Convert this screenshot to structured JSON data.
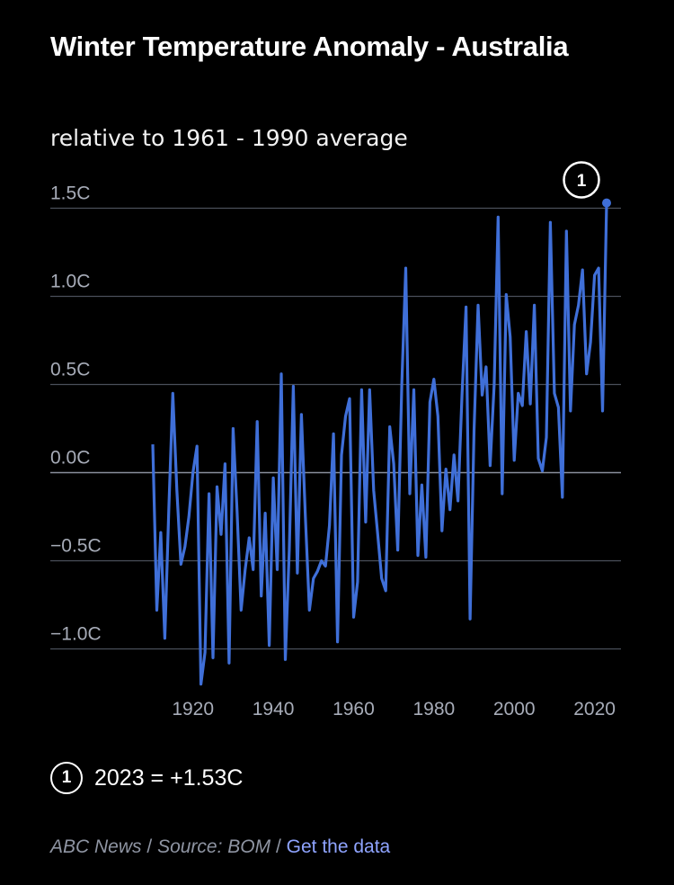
{
  "title": "Winter Temperature Anomaly - Australia",
  "subtitle": "relative to 1961 - 1990 average",
  "colors": {
    "line": "#3f6fd8",
    "grid": "#4a4f5a",
    "zero": "#8a8f9c",
    "tick": "#a7acb8",
    "link": "#8fa4ff"
  },
  "annotation": {
    "marker": "1",
    "text": "2023 = +1.53C"
  },
  "footer": {
    "publisher": "ABC News",
    "source": "Source: BOM",
    "separator": "/",
    "link_label": "Get the data"
  },
  "chart_data": {
    "type": "line",
    "title": "Winter Temperature Anomaly - Australia",
    "subtitle": "relative to 1961 - 1990 average",
    "xlim": [
      1910,
      2023
    ],
    "ylim": [
      -1.2,
      1.53
    ],
    "x_ticks": [
      1920,
      1940,
      1960,
      1980,
      2000,
      2020
    ],
    "y_ticks": [
      {
        "value": 1.5,
        "label": "1.5C"
      },
      {
        "value": 1.0,
        "label": "1.0C"
      },
      {
        "value": 0.5,
        "label": "0.5C"
      },
      {
        "value": 0.0,
        "label": "0.0C"
      },
      {
        "value": -0.5,
        "label": "−0.5C"
      },
      {
        "value": -1.0,
        "label": "−1.0C"
      }
    ],
    "grid": true,
    "series": [
      {
        "x": [
          1910,
          1911,
          1912,
          1913,
          1914,
          1915,
          1916,
          1917,
          1918,
          1919,
          1920,
          1921,
          1922,
          1923,
          1924,
          1925,
          1926,
          1927,
          1928,
          1929,
          1930,
          1931,
          1932,
          1933,
          1934,
          1935,
          1936,
          1937,
          1938,
          1939,
          1940,
          1941,
          1942,
          1943,
          1944,
          1945,
          1946,
          1947,
          1948,
          1949,
          1950,
          1951,
          1952,
          1953,
          1954,
          1955,
          1956,
          1957,
          1958,
          1959,
          1960,
          1961,
          1962,
          1963,
          1964,
          1965,
          1966,
          1967,
          1968,
          1969,
          1970,
          1971,
          1972,
          1973,
          1974,
          1975,
          1976,
          1977,
          1978,
          1979,
          1980,
          1981,
          1982,
          1983,
          1984,
          1985,
          1986,
          1987,
          1988,
          1989,
          1990,
          1991,
          1992,
          1993,
          1994,
          1995,
          1996,
          1997,
          1998,
          1999,
          2000,
          2001,
          2002,
          2003,
          2004,
          2005,
          2006,
          2007,
          2008,
          2009,
          2010,
          2011,
          2012,
          2013,
          2014,
          2015,
          2016,
          2017,
          2018,
          2019,
          2020,
          2021,
          2022,
          2023
        ],
        "values": [
          0.16,
          -0.78,
          -0.34,
          -0.94,
          -0.2,
          0.45,
          -0.1,
          -0.52,
          -0.42,
          -0.25,
          0.0,
          0.15,
          -1.2,
          -1.02,
          -0.12,
          -1.05,
          -0.08,
          -0.35,
          0.05,
          -1.08,
          0.25,
          -0.22,
          -0.78,
          -0.55,
          -0.37,
          -0.55,
          0.29,
          -0.7,
          -0.23,
          -0.98,
          -0.03,
          -0.55,
          0.56,
          -1.06,
          -0.44,
          0.49,
          -0.57,
          0.33,
          -0.25,
          -0.78,
          -0.6,
          -0.56,
          -0.5,
          -0.53,
          -0.3,
          0.22,
          -0.96,
          0.1,
          0.32,
          0.42,
          -0.82,
          -0.62,
          0.47,
          -0.28,
          0.47,
          -0.1,
          -0.35,
          -0.6,
          -0.67,
          0.26,
          0.05,
          -0.44,
          0.5,
          1.16,
          -0.12,
          0.47,
          -0.47,
          -0.07,
          -0.48,
          0.4,
          0.53,
          0.32,
          -0.33,
          0.02,
          -0.21,
          0.1,
          -0.16,
          0.44,
          0.94,
          -0.83,
          0.24,
          0.95,
          0.44,
          0.6,
          0.04,
          0.5,
          1.45,
          -0.12,
          1.01,
          0.77,
          0.07,
          0.45,
          0.38,
          0.8,
          0.39,
          0.95,
          0.08,
          0.01,
          0.2,
          1.42,
          0.45,
          0.37,
          -0.14,
          1.37,
          0.35,
          0.84,
          0.95,
          1.15,
          0.56,
          0.74,
          1.12,
          1.16,
          0.35,
          1.53
        ]
      }
    ]
  }
}
